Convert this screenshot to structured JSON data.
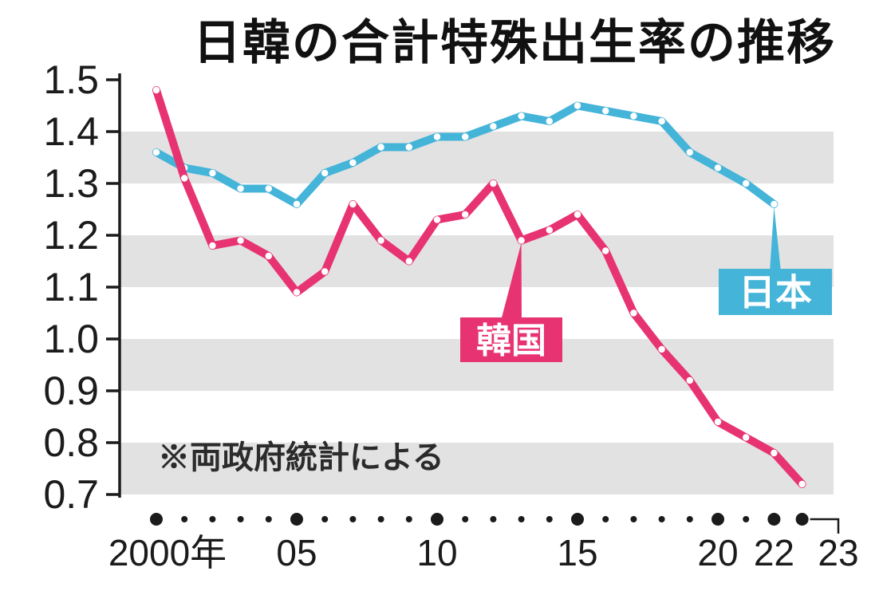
{
  "title": "日韓の合計特殊出生率の推移",
  "note": "※両政府統計による",
  "chart_data": {
    "type": "line",
    "x_start": 2000,
    "x_end": 2023,
    "xlabel": "年",
    "ylabel": "合計特殊出生率",
    "ylim": [
      0.7,
      1.5
    ],
    "yticks": [
      "1.5",
      "1.4",
      "1.3",
      "1.2",
      "1.1",
      "1.0",
      "0.9",
      "0.8",
      "0.7"
    ],
    "grid": "alternating horizontal gray bands of 0.1",
    "legend_position": "inline colored label boxes with callout pointers",
    "xtick_labels": [
      {
        "year": 2000,
        "label": "2000年",
        "major": true
      },
      {
        "year": 2005,
        "label": "05",
        "major": true
      },
      {
        "year": 2010,
        "label": "10",
        "major": true
      },
      {
        "year": 2015,
        "label": "15",
        "major": true
      },
      {
        "year": 2020,
        "label": "20",
        "major": true
      },
      {
        "year": 2022,
        "label": "22",
        "major": true
      },
      {
        "year": 2023,
        "label": "23",
        "major": true,
        "offset_bracket": true
      }
    ],
    "series": [
      {
        "name": "日本",
        "color": "#45b4d9",
        "start_year": 2000,
        "callout_year": 2022,
        "values": [
          1.36,
          1.33,
          1.32,
          1.29,
          1.29,
          1.26,
          1.32,
          1.34,
          1.37,
          1.37,
          1.39,
          1.39,
          1.41,
          1.43,
          1.42,
          1.45,
          1.44,
          1.43,
          1.42,
          1.36,
          1.33,
          1.3,
          1.26
        ]
      },
      {
        "name": "韓国",
        "color": "#e73372",
        "start_year": 2000,
        "callout_year": 2013,
        "values": [
          1.48,
          1.31,
          1.18,
          1.19,
          1.16,
          1.09,
          1.13,
          1.26,
          1.19,
          1.15,
          1.23,
          1.24,
          1.3,
          1.19,
          1.21,
          1.24,
          1.17,
          1.05,
          0.98,
          0.92,
          0.84,
          0.81,
          0.78,
          0.72
        ]
      }
    ],
    "colors": {
      "band_gray": "#e2e2e2",
      "axis": "#1b1b1b",
      "marker_dot": "#ffffff"
    }
  }
}
